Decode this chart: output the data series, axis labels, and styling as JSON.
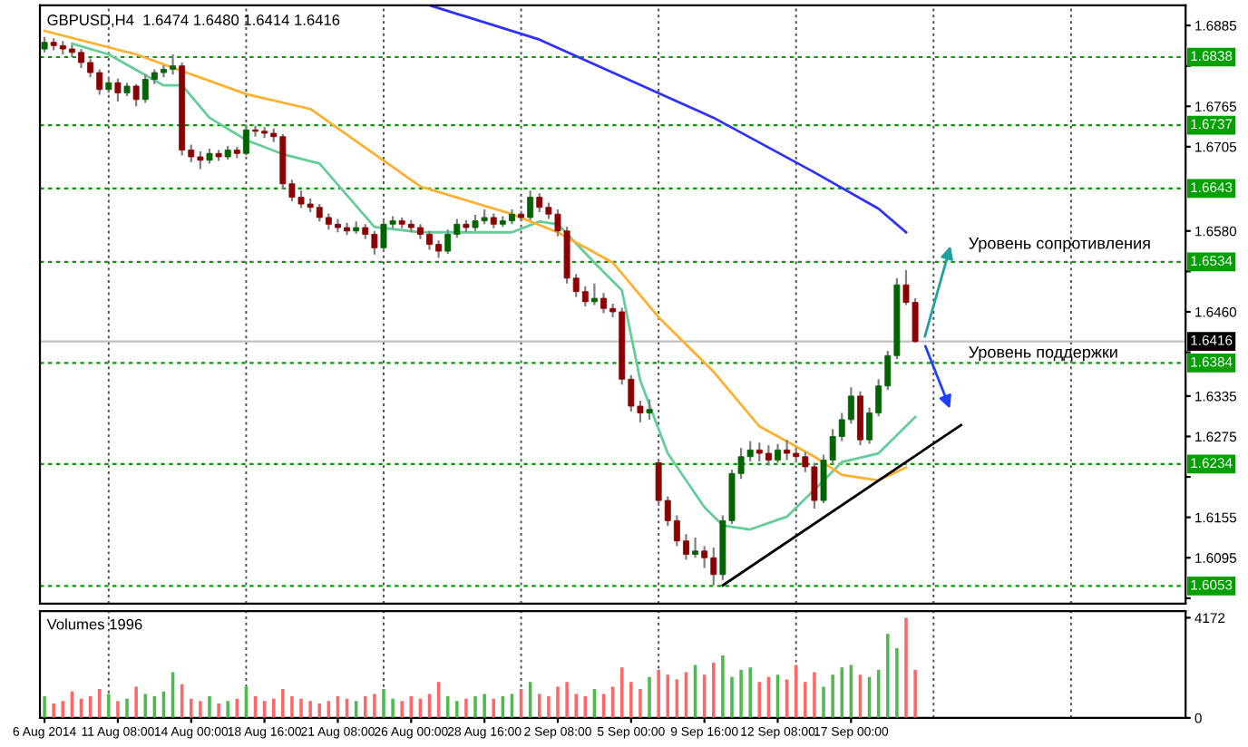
{
  "chart_data": [
    {
      "type": "candlestick",
      "title": "GBPUSD,H4  1.6474 1.6480 1.6414 1.6416",
      "categories": [
        null,
        null,
        null,
        null,
        null,
        null,
        null,
        null,
        null,
        null,
        null,
        null,
        null,
        null,
        null,
        null,
        null,
        null,
        null,
        null,
        null,
        null,
        null,
        null,
        null,
        null,
        null,
        null,
        null,
        null,
        null,
        null,
        null,
        null,
        null,
        null,
        null,
        null,
        null,
        null,
        null,
        null,
        null,
        null,
        null,
        null,
        null,
        null,
        null,
        null,
        null,
        null,
        null,
        null,
        null,
        null,
        null,
        null,
        null,
        null,
        null,
        null,
        null,
        null,
        null,
        null,
        null,
        null,
        null,
        null,
        null,
        null,
        null,
        null,
        null,
        null,
        null,
        null,
        null,
        null,
        null,
        null,
        null,
        null,
        null,
        null,
        null,
        null,
        null,
        null,
        null,
        null,
        null,
        null,
        null,
        null,
        null,
        null,
        null,
        null,
        null,
        null,
        null,
        null,
        null,
        null,
        null,
        null,
        null,
        null,
        null,
        null,
        null,
        null,
        null,
        null,
        null,
        null,
        null,
        null,
        null,
        null,
        null,
        null,
        null
      ],
      "ohlc": [
        [
          1.685,
          1.6868,
          1.6845,
          1.686
        ],
        [
          1.686,
          1.6866,
          1.6848,
          1.6855
        ],
        [
          1.6855,
          1.6862,
          1.6842,
          1.685
        ],
        [
          1.685,
          1.6856,
          1.6838,
          1.6845
        ],
        [
          1.6845,
          1.685,
          1.6822,
          1.683
        ],
        [
          1.683,
          1.6836,
          1.6808,
          1.6815
        ],
        [
          1.6815,
          1.682,
          1.6782,
          1.679
        ],
        [
          1.679,
          1.6808,
          1.6785,
          1.68
        ],
        [
          1.68,
          1.6806,
          1.6772,
          1.6785
        ],
        [
          1.6785,
          1.68,
          1.678,
          1.6795
        ],
        [
          1.6795,
          1.6798,
          1.6765,
          1.6775
        ],
        [
          1.6775,
          1.6812,
          1.677,
          1.6805
        ],
        [
          1.6805,
          1.682,
          1.6798,
          1.6815
        ],
        [
          1.6815,
          1.6826,
          1.6808,
          1.682
        ],
        [
          1.682,
          1.6842,
          1.6812,
          1.6825
        ],
        [
          1.6825,
          1.683,
          1.6692,
          1.67
        ],
        [
          1.67,
          1.6708,
          1.6682,
          1.669
        ],
        [
          1.669,
          1.6698,
          1.6672,
          1.6685
        ],
        [
          1.6685,
          1.6702,
          1.668,
          1.6695
        ],
        [
          1.6695,
          1.67,
          1.6684,
          1.669
        ],
        [
          1.669,
          1.6706,
          1.6686,
          1.67
        ],
        [
          1.67,
          1.6705,
          1.6688,
          1.6695
        ],
        [
          1.6695,
          1.6738,
          1.6692,
          1.673
        ],
        [
          1.673,
          1.6736,
          1.672,
          1.6728
        ],
        [
          1.6728,
          1.6734,
          1.6718,
          1.6725
        ],
        [
          1.6725,
          1.6732,
          1.6712,
          1.672
        ],
        [
          1.672,
          1.6724,
          1.6642,
          1.665
        ],
        [
          1.665,
          1.6656,
          1.6624,
          1.663
        ],
        [
          1.663,
          1.664,
          1.6614,
          1.662
        ],
        [
          1.662,
          1.6628,
          1.6608,
          1.6615
        ],
        [
          1.6615,
          1.662,
          1.6594,
          1.66
        ],
        [
          1.66,
          1.6606,
          1.6582,
          1.659
        ],
        [
          1.659,
          1.6598,
          1.6578,
          1.6585
        ],
        [
          1.6585,
          1.6592,
          1.6574,
          1.658
        ],
        [
          1.658,
          1.6594,
          1.6576,
          1.6585
        ],
        [
          1.6585,
          1.659,
          1.6568,
          1.6575
        ],
        [
          1.6575,
          1.658,
          1.6545,
          1.6555
        ],
        [
          1.6555,
          1.6596,
          1.655,
          1.659
        ],
        [
          1.659,
          1.6602,
          1.6584,
          1.6595
        ],
        [
          1.6595,
          1.66,
          1.6584,
          1.659
        ],
        [
          1.659,
          1.6596,
          1.6578,
          1.6585
        ],
        [
          1.6585,
          1.659,
          1.6568,
          1.6575
        ],
        [
          1.6575,
          1.658,
          1.6552,
          1.656
        ],
        [
          1.656,
          1.6566,
          1.654,
          1.655
        ],
        [
          1.655,
          1.6582,
          1.6546,
          1.6575
        ],
        [
          1.6575,
          1.6598,
          1.657,
          1.659
        ],
        [
          1.659,
          1.6596,
          1.6578,
          1.6585
        ],
        [
          1.6585,
          1.6604,
          1.658,
          1.6595
        ],
        [
          1.6595,
          1.6612,
          1.659,
          1.66
        ],
        [
          1.66,
          1.6606,
          1.6584,
          1.659
        ],
        [
          1.659,
          1.6602,
          1.6586,
          1.6595
        ],
        [
          1.6595,
          1.6612,
          1.659,
          1.6605
        ],
        [
          1.6605,
          1.661,
          1.6594,
          1.66
        ],
        [
          1.66,
          1.664,
          1.6596,
          1.663
        ],
        [
          1.663,
          1.6636,
          1.6608,
          1.6615
        ],
        [
          1.6615,
          1.6622,
          1.6598,
          1.6605
        ],
        [
          1.6605,
          1.6612,
          1.6572,
          1.658
        ],
        [
          1.658,
          1.6586,
          1.6502,
          1.651
        ],
        [
          1.651,
          1.6516,
          1.6482,
          1.649
        ],
        [
          1.649,
          1.6498,
          1.6468,
          1.6475
        ],
        [
          1.6475,
          1.6502,
          1.647,
          1.648
        ],
        [
          1.648,
          1.6488,
          1.6458,
          1.6465
        ],
        [
          1.6465,
          1.6472,
          1.6452,
          1.646
        ],
        [
          1.646,
          1.6466,
          1.6352,
          1.636
        ],
        [
          1.636,
          1.6366,
          1.6312,
          1.632
        ],
        [
          1.632,
          1.6328,
          1.6296,
          1.631
        ],
        [
          1.631,
          1.633,
          1.63,
          1.6315
        ],
        [
          1.6236,
          1.624,
          1.6172,
          1.618
        ],
        [
          1.618,
          1.6186,
          1.6142,
          1.615
        ],
        [
          1.615,
          1.6158,
          1.6112,
          1.612
        ],
        [
          1.612,
          1.613,
          1.6092,
          1.61
        ],
        [
          1.61,
          1.6125,
          1.6095,
          1.6105
        ],
        [
          1.6105,
          1.6112,
          1.608,
          1.6095
        ],
        [
          1.6095,
          1.611,
          1.6054,
          1.607
        ],
        [
          1.607,
          1.6158,
          1.6062,
          1.615
        ],
        [
          1.615,
          1.6226,
          1.6145,
          1.622
        ],
        [
          1.622,
          1.6258,
          1.6212,
          1.6245
        ],
        [
          1.6245,
          1.6268,
          1.6238,
          1.6255
        ],
        [
          1.6255,
          1.6266,
          1.6238,
          1.625
        ],
        [
          1.625,
          1.6262,
          1.6232,
          1.624
        ],
        [
          1.624,
          1.6264,
          1.6236,
          1.6255
        ],
        [
          1.6255,
          1.627,
          1.624,
          1.625
        ],
        [
          1.625,
          1.6258,
          1.6236,
          1.6245
        ],
        [
          1.6245,
          1.6252,
          1.6222,
          1.623
        ],
        [
          1.623,
          1.6236,
          1.6168,
          1.618
        ],
        [
          1.618,
          1.6248,
          1.6176,
          1.624
        ],
        [
          1.624,
          1.6286,
          1.6234,
          1.6275
        ],
        [
          1.6275,
          1.631,
          1.6268,
          1.63
        ],
        [
          1.63,
          1.6348,
          1.6294,
          1.6335
        ],
        [
          1.6335,
          1.6342,
          1.6262,
          1.627
        ],
        [
          1.627,
          1.6318,
          1.6264,
          1.631
        ],
        [
          1.631,
          1.636,
          1.6305,
          1.635
        ],
        [
          1.635,
          1.6402,
          1.6344,
          1.6395
        ],
        [
          1.6395,
          1.651,
          1.639,
          1.65
        ],
        [
          1.65,
          1.6522,
          1.647,
          1.6474
        ],
        [
          1.6474,
          1.648,
          1.6414,
          1.6416
        ],
        null,
        null,
        null,
        null,
        null,
        null,
        null,
        null,
        null,
        null,
        null,
        null,
        null,
        null,
        null,
        null,
        null,
        null,
        null,
        null,
        null,
        null,
        null,
        null,
        null,
        null,
        null,
        null,
        null
      ],
      "colors": [
        "#006400",
        "#8b0000",
        "#8b0000",
        "#8b0000",
        "#8b0000",
        "#8b0000",
        "#8b0000",
        "#006400",
        "#8b0000",
        "#006400",
        "#8b0000",
        "#006400",
        "#006400",
        "#006400",
        "#006400",
        "#8b0000",
        "#8b0000",
        "#8b0000",
        "#006400",
        "#8b0000",
        "#006400",
        "#8b0000",
        "#006400",
        "#8b0000",
        "#8b0000",
        "#8b0000",
        "#8b0000",
        "#8b0000",
        "#8b0000",
        "#8b0000",
        "#8b0000",
        "#8b0000",
        "#8b0000",
        "#8b0000",
        "#006400",
        "#8b0000",
        "#8b0000",
        "#006400",
        "#006400",
        "#8b0000",
        "#8b0000",
        "#8b0000",
        "#8b0000",
        "#8b0000",
        "#006400",
        "#006400",
        "#8b0000",
        "#006400",
        "#006400",
        "#8b0000",
        "#006400",
        "#006400",
        "#8b0000",
        "#006400",
        "#8b0000",
        "#8b0000",
        "#8b0000",
        "#8b0000",
        "#8b0000",
        "#8b0000",
        "#006400",
        "#8b0000",
        "#8b0000",
        "#8b0000",
        "#8b0000",
        "#8b0000",
        "#006400",
        "#8b0000",
        "#8b0000",
        "#8b0000",
        "#8b0000",
        "#006400",
        "#8b0000",
        "#8b0000",
        "#006400",
        "#006400",
        "#006400",
        "#006400",
        "#8b0000",
        "#8b0000",
        "#006400",
        "#8b0000",
        "#8b0000",
        "#8b0000",
        "#8b0000",
        "#006400",
        "#006400",
        "#006400",
        "#006400",
        "#8b0000",
        "#006400",
        "#006400",
        "#006400",
        "#006400",
        "#8b0000",
        "#8b0000",
        null,
        null,
        null,
        null,
        null,
        null,
        null,
        null,
        null,
        null,
        null,
        null,
        null,
        null,
        null,
        null,
        null,
        null,
        null,
        null,
        null,
        null,
        null,
        null,
        null,
        null,
        null,
        null,
        null
      ],
      "series": [
        {
          "type": "line",
          "color": "#66cc99",
          "values": [
            null,
            null,
            null,
            1.6858,
            null,
            null,
            null,
            1.6842,
            null,
            null,
            null,
            null,
            null,
            1.6796,
            null,
            1.6796,
            null,
            null,
            1.6748,
            null,
            null,
            null,
            1.6715,
            null,
            null,
            null,
            1.6694,
            null,
            null,
            null,
            1.668,
            null,
            null,
            null,
            null,
            null,
            1.6586,
            null,
            null,
            null,
            null,
            1.6578,
            null,
            null,
            null,
            null,
            null,
            null,
            null,
            null,
            null,
            1.6578,
            null,
            null,
            1.6594,
            null,
            1.659,
            null,
            null,
            null,
            1.6533,
            null,
            null,
            1.6492,
            null,
            1.6358,
            null,
            null,
            1.625,
            null,
            null,
            null,
            1.617,
            null,
            1.6143,
            null,
            null,
            1.6137,
            null,
            null,
            null,
            1.6156,
            null,
            null,
            1.6196,
            null,
            null,
            1.6237,
            null,
            null,
            null,
            1.625,
            null,
            null,
            null,
            1.6304,
            null,
            null,
            null,
            null,
            null,
            null,
            null,
            null,
            null,
            null,
            null,
            null,
            null,
            null,
            null,
            null,
            null,
            null,
            null,
            null,
            null,
            null,
            null,
            null,
            null,
            null,
            null,
            null,
            null
          ]
        },
        {
          "type": "line",
          "color": "#ffb030",
          "values": [
            1.6877,
            null,
            null,
            null,
            null,
            null,
            null,
            null,
            null,
            null,
            1.6842,
            null,
            null,
            null,
            null,
            null,
            null,
            null,
            null,
            null,
            null,
            null,
            1.6783,
            null,
            null,
            null,
            null,
            null,
            null,
            1.6761,
            null,
            null,
            null,
            null,
            null,
            null,
            null,
            null,
            null,
            null,
            null,
            1.6646,
            null,
            null,
            null,
            null,
            null,
            null,
            null,
            null,
            null,
            1.6605,
            null,
            null,
            null,
            null,
            1.6578,
            null,
            null,
            null,
            null,
            null,
            1.6533,
            null,
            null,
            null,
            null,
            1.6452,
            null,
            null,
            null,
            null,
            null,
            1.6371,
            null,
            null,
            null,
            null,
            1.629,
            null,
            null,
            null,
            null,
            null,
            1.6245,
            null,
            null,
            1.6218,
            null,
            null,
            null,
            1.621,
            null,
            null,
            1.6229,
            null,
            null,
            null,
            null,
            null,
            null,
            null,
            null,
            null,
            null,
            null,
            null,
            null,
            null,
            null,
            null,
            null,
            null,
            null,
            null,
            null,
            null,
            null,
            null,
            null,
            null,
            null,
            null,
            null,
            null
          ]
        },
        {
          "type": "line",
          "color": "#3030ff",
          "values": [
            null,
            null,
            null,
            null,
            null,
            null,
            null,
            null,
            null,
            null,
            null,
            null,
            null,
            null,
            null,
            null,
            null,
            null,
            null,
            null,
            null,
            null,
            null,
            null,
            null,
            null,
            null,
            null,
            null,
            null,
            null,
            null,
            null,
            null,
            null,
            null,
            null,
            null,
            null,
            null,
            null,
            null,
            1.6915,
            null,
            null,
            null,
            null,
            null,
            null,
            null,
            null,
            null,
            null,
            null,
            1.6864,
            null,
            null,
            null,
            null,
            null,
            null,
            null,
            null,
            null,
            null,
            null,
            null,
            null,
            null,
            null,
            null,
            null,
            null,
            1.6748,
            null,
            null,
            null,
            null,
            null,
            null,
            null,
            null,
            null,
            null,
            1.6667,
            null,
            null,
            null,
            null,
            null,
            null,
            1.6613,
            null,
            null,
            1.6578,
            null,
            null,
            null,
            null,
            null,
            null,
            null,
            null,
            null,
            null,
            null,
            null,
            null,
            null,
            null,
            null,
            null,
            null,
            null,
            null,
            null,
            null,
            null,
            null,
            null,
            null,
            null,
            null,
            null,
            null
          ]
        },
        {
          "type": "line",
          "color": "#000000",
          "values": [
            null,
            null,
            null,
            null,
            null,
            null,
            null,
            null,
            null,
            null,
            null,
            null,
            null,
            null,
            null,
            null,
            null,
            null,
            null,
            null,
            null,
            null,
            null,
            null,
            null,
            null,
            null,
            null,
            null,
            null,
            null,
            null,
            null,
            null,
            null,
            null,
            null,
            null,
            null,
            null,
            null,
            null,
            null,
            null,
            null,
            null,
            null,
            null,
            null,
            null,
            null,
            null,
            null,
            null,
            null,
            null,
            null,
            null,
            null,
            null,
            null,
            null,
            null,
            null,
            null,
            null,
            null,
            null,
            null,
            null,
            null,
            null,
            null,
            null,
            1.6054,
            null,
            null,
            null,
            null,
            null,
            null,
            null,
            null,
            null,
            null,
            null,
            null,
            null,
            null,
            null,
            null,
            null,
            null,
            null,
            null,
            null,
            null,
            null,
            null,
            null,
            1.6292,
            null,
            null,
            null,
            null,
            null,
            null,
            null,
            null,
            null,
            null,
            null,
            null,
            null,
            null,
            null,
            null,
            null,
            null,
            null,
            null,
            null,
            null,
            null,
            null
          ]
        }
      ],
      "ylim": [
        1.6027,
        1.6915
      ],
      "yticks": [
        {
          "value": 1.6885,
          "label": "1.6885"
        },
        {
          "value": 1.6825,
          "label": null
        },
        {
          "value": 1.6765,
          "label": "1.6765"
        },
        {
          "value": 1.6705,
          "label": "1.6705"
        },
        {
          "value": 1.658,
          "label": "1.6580"
        },
        {
          "value": 1.652,
          "label": null
        },
        {
          "value": 1.646,
          "label": "1.6460"
        },
        {
          "value": 1.64,
          "label": null
        },
        {
          "value": 1.6335,
          "label": "1.6335"
        },
        {
          "value": 1.6275,
          "label": "1.6275"
        },
        {
          "value": 1.6215,
          "label": null
        },
        {
          "value": 1.6155,
          "label": "1.6155"
        },
        {
          "value": 1.6095,
          "label": "1.6095"
        },
        {
          "value": 1.6035,
          "label": null
        }
      ],
      "ref_lines": [
        {
          "axis": "y",
          "value": 1.6838,
          "label": "1.6838",
          "color": "#00a000",
          "line_style": "dashed"
        },
        {
          "axis": "y",
          "value": 1.6737,
          "label": "1.6737",
          "color": "#00a000",
          "line_style": "dashed"
        },
        {
          "axis": "y",
          "value": 1.6643,
          "label": "1.6643",
          "color": "#00a000",
          "line_style": "dashed"
        },
        {
          "axis": "y",
          "value": 1.6534,
          "label": "1.6534",
          "color": "#00a000",
          "line_style": "dashed"
        },
        {
          "axis": "y",
          "value": 1.6384,
          "label": "1.6384",
          "color": "#00a000",
          "line_style": "dashed"
        },
        {
          "axis": "y",
          "value": 1.6234,
          "label": "1.6234",
          "color": "#00a000",
          "line_style": "dashed"
        },
        {
          "axis": "y",
          "value": 1.6053,
          "label": "1.6053",
          "color": "#00a000",
          "line_style": "dashed"
        },
        {
          "axis": "y",
          "value": 1.6416,
          "label": "1.6416",
          "color": "#c0c0c0",
          "line_style": "solid"
        }
      ],
      "annotations": [
        "Уровень сопротивления",
        "Уровень поддержки"
      ],
      "tick_labels": "y"
    },
    {
      "type": "bar",
      "title": "Volumes 1996",
      "categories": [
        "6 Aug 2014",
        null,
        null,
        null,
        null,
        null,
        null,
        null,
        "11 Aug 08:00",
        null,
        null,
        null,
        null,
        null,
        null,
        null,
        "14 Aug 00:00",
        null,
        null,
        null,
        null,
        null,
        null,
        null,
        "18 Aug 16:00",
        null,
        null,
        null,
        null,
        null,
        null,
        null,
        "21 Aug 08:00",
        null,
        null,
        null,
        null,
        null,
        null,
        null,
        "26 Aug 00:00",
        null,
        null,
        null,
        null,
        null,
        null,
        null,
        "28 Aug 16:00",
        null,
        null,
        null,
        null,
        null,
        null,
        null,
        "2 Sep 08:00",
        null,
        null,
        null,
        null,
        null,
        null,
        null,
        "5 Sep 00:00",
        null,
        null,
        null,
        null,
        null,
        null,
        null,
        "9 Sep 16:00",
        null,
        null,
        null,
        null,
        null,
        null,
        null,
        "12 Sep 08:00",
        null,
        null,
        null,
        null,
        null,
        null,
        null,
        "17 Sep 00:00",
        null,
        null,
        null,
        null,
        null,
        null,
        null,
        null,
        null,
        null,
        null,
        null,
        null,
        null,
        null,
        null,
        null,
        null,
        null,
        null,
        null,
        null,
        null,
        null,
        null,
        null,
        null,
        null,
        null,
        null,
        null,
        null,
        null,
        null,
        null,
        null
      ],
      "values": [
        900,
        600,
        700,
        1100,
        800,
        900,
        1200,
        1000,
        700,
        800,
        1300,
        1000,
        900,
        1100,
        1900,
        1400,
        800,
        700,
        900,
        600,
        700,
        800,
        1300,
        900,
        700,
        800,
        1200,
        900,
        800,
        700,
        600,
        700,
        900,
        800,
        700,
        900,
        1000,
        1200,
        800,
        700,
        900,
        800,
        1000,
        1500,
        900,
        700,
        800,
        900,
        1000,
        800,
        900,
        1000,
        1200,
        1500,
        1000,
        900,
        1300,
        1500,
        1000,
        900,
        1200,
        1000,
        1300,
        2100,
        1500,
        1200,
        1700,
        2000,
        1800,
        1600,
        1900,
        2200,
        1800,
        2300,
        2600,
        1700,
        2000,
        2100,
        1500,
        1700,
        1800,
        1600,
        2200,
        1500,
        1900,
        1300,
        1800,
        2100,
        2200,
        1800,
        1700,
        2000,
        3500,
        2900,
        4172,
        1996,
        null,
        null,
        null,
        null,
        null,
        null,
        null,
        null,
        null,
        null,
        null,
        null,
        null,
        null,
        null,
        null,
        null,
        null,
        null,
        null,
        null,
        null,
        null,
        null,
        null,
        null,
        null,
        null,
        null
      ],
      "colors": [
        "#4cbb4c",
        "#ff6666",
        "#ff6666",
        "#ff6666",
        "#ff6666",
        "#ff6666",
        "#ff6666",
        "#4cbb4c",
        "#ff6666",
        "#4cbb4c",
        "#ff6666",
        "#4cbb4c",
        "#4cbb4c",
        "#4cbb4c",
        "#4cbb4c",
        "#ff6666",
        "#ff6666",
        "#ff6666",
        "#4cbb4c",
        "#ff6666",
        "#4cbb4c",
        "#ff6666",
        "#4cbb4c",
        "#ff6666",
        "#ff6666",
        "#ff6666",
        "#ff6666",
        "#ff6666",
        "#ff6666",
        "#ff6666",
        "#ff6666",
        "#ff6666",
        "#ff6666",
        "#ff6666",
        "#4cbb4c",
        "#ff6666",
        "#ff6666",
        "#4cbb4c",
        "#4cbb4c",
        "#ff6666",
        "#ff6666",
        "#ff6666",
        "#ff6666",
        "#ff6666",
        "#4cbb4c",
        "#4cbb4c",
        "#ff6666",
        "#4cbb4c",
        "#4cbb4c",
        "#ff6666",
        "#4cbb4c",
        "#4cbb4c",
        "#ff6666",
        "#4cbb4c",
        "#ff6666",
        "#ff6666",
        "#ff6666",
        "#ff6666",
        "#ff6666",
        "#ff6666",
        "#4cbb4c",
        "#ff6666",
        "#ff6666",
        "#ff6666",
        "#ff6666",
        "#ff6666",
        "#4cbb4c",
        "#ff6666",
        "#ff6666",
        "#ff6666",
        "#ff6666",
        "#4cbb4c",
        "#ff6666",
        "#ff6666",
        "#4cbb4c",
        "#4cbb4c",
        "#4cbb4c",
        "#4cbb4c",
        "#ff6666",
        "#ff6666",
        "#4cbb4c",
        "#ff6666",
        "#ff6666",
        "#ff6666",
        "#ff6666",
        "#4cbb4c",
        "#4cbb4c",
        "#4cbb4c",
        "#4cbb4c",
        "#ff6666",
        "#4cbb4c",
        "#4cbb4c",
        "#4cbb4c",
        "#4cbb4c",
        "#ff6666",
        "#ff6666",
        null,
        null,
        null,
        null,
        null,
        null,
        null,
        null,
        null,
        null,
        null,
        null,
        null,
        null,
        null,
        null,
        null,
        null,
        null,
        null,
        null,
        null,
        null,
        null,
        null,
        null,
        null,
        null,
        null
      ],
      "ylim": [
        0,
        4450
      ],
      "yticks": [
        0,
        4172
      ]
    }
  ]
}
